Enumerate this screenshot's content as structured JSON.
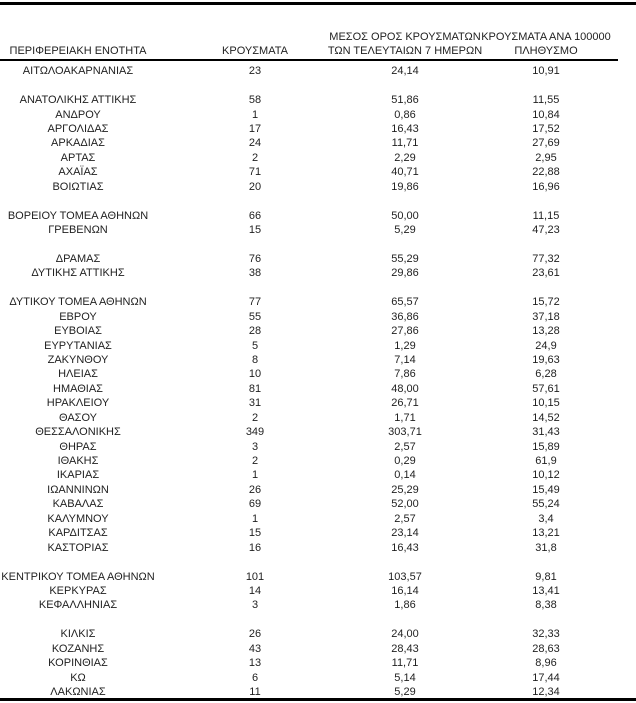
{
  "table": {
    "columns": [
      {
        "id": "region",
        "lines": [
          "ΠΕΡΙΦΕΡΕΙΑΚΗ ΕΝΟΤΗΤΑ"
        ]
      },
      {
        "id": "cases",
        "lines": [
          "ΚΡΟΥΣΜΑΤΑ"
        ]
      },
      {
        "id": "avg7",
        "lines": [
          "ΜΕΣΟΣ ΟΡΟΣ ΚΡΟΥΣΜΑΤΩΝ",
          "ΤΩΝ ΤΕΛΕΥΤΑΙΩΝ 7 ΗΜΕΡΩΝ"
        ]
      },
      {
        "id": "per100k",
        "lines": [
          "ΚΡΟΥΣΜΑΤΑ ΑΝΑ 100000",
          "ΠΛΗΘΥΣΜΟ"
        ]
      }
    ],
    "groups": [
      {
        "rows": [
          {
            "region": "ΑΙΤΩΛΟΑΚΑΡΝΑΝΙΑΣ",
            "cases": "23",
            "avg7": "24,14",
            "per100k": "10,91"
          }
        ]
      },
      {
        "rows": [
          {
            "region": "ΑΝΑΤΟΛΙΚΗΣ ΑΤΤΙΚΗΣ",
            "cases": "58",
            "avg7": "51,86",
            "per100k": "11,55"
          },
          {
            "region": "ΑΝΔΡΟΥ",
            "cases": "1",
            "avg7": "0,86",
            "per100k": "10,84"
          },
          {
            "region": "ΑΡΓΟΛΙΔΑΣ",
            "cases": "17",
            "avg7": "16,43",
            "per100k": "17,52"
          },
          {
            "region": "ΑΡΚΑΔΙΑΣ",
            "cases": "24",
            "avg7": "11,71",
            "per100k": "27,69"
          },
          {
            "region": "ΑΡΤΑΣ",
            "cases": "2",
            "avg7": "2,29",
            "per100k": "2,95"
          },
          {
            "region": "ΑΧΑΪΑΣ",
            "cases": "71",
            "avg7": "40,71",
            "per100k": "22,88"
          },
          {
            "region": "ΒΟΙΩΤΙΑΣ",
            "cases": "20",
            "avg7": "19,86",
            "per100k": "16,96"
          }
        ]
      },
      {
        "rows": [
          {
            "region": "ΒΟΡΕΙΟΥ ΤΟΜΕΑ ΑΘΗΝΩΝ",
            "cases": "66",
            "avg7": "50,00",
            "per100k": "11,15"
          },
          {
            "region": "ΓΡΕΒΕΝΩΝ",
            "cases": "15",
            "avg7": "5,29",
            "per100k": "47,23"
          }
        ]
      },
      {
        "rows": [
          {
            "region": "ΔΡΑΜΑΣ",
            "cases": "76",
            "avg7": "55,29",
            "per100k": "77,32"
          },
          {
            "region": "ΔΥΤΙΚΗΣ ΑΤΤΙΚΗΣ",
            "cases": "38",
            "avg7": "29,86",
            "per100k": "23,61"
          }
        ]
      },
      {
        "rows": [
          {
            "region": "ΔΥΤΙΚΟΥ ΤΟΜΕΑ ΑΘΗΝΩΝ",
            "cases": "77",
            "avg7": "65,57",
            "per100k": "15,72"
          },
          {
            "region": "ΕΒΡΟΥ",
            "cases": "55",
            "avg7": "36,86",
            "per100k": "37,18"
          },
          {
            "region": "ΕΥΒΟΙΑΣ",
            "cases": "28",
            "avg7": "27,86",
            "per100k": "13,28"
          },
          {
            "region": "ΕΥΡΥΤΑΝΙΑΣ",
            "cases": "5",
            "avg7": "1,29",
            "per100k": "24,9"
          },
          {
            "region": "ΖΑΚΥΝΘΟΥ",
            "cases": "8",
            "avg7": "7,14",
            "per100k": "19,63"
          },
          {
            "region": "ΗΛΕΙΑΣ",
            "cases": "10",
            "avg7": "7,86",
            "per100k": "6,28"
          },
          {
            "region": "ΗΜΑΘΙΑΣ",
            "cases": "81",
            "avg7": "48,00",
            "per100k": "57,61"
          },
          {
            "region": "ΗΡΑΚΛΕΙΟΥ",
            "cases": "31",
            "avg7": "26,71",
            "per100k": "10,15"
          },
          {
            "region": "ΘΑΣΟΥ",
            "cases": "2",
            "avg7": "1,71",
            "per100k": "14,52"
          },
          {
            "region": "ΘΕΣΣΑΛΟΝΙΚΗΣ",
            "cases": "349",
            "avg7": "303,71",
            "per100k": "31,43"
          },
          {
            "region": "ΘΗΡΑΣ",
            "cases": "3",
            "avg7": "2,57",
            "per100k": "15,89"
          },
          {
            "region": "ΙΘΑΚΗΣ",
            "cases": "2",
            "avg7": "0,29",
            "per100k": "61,9"
          },
          {
            "region": "ΙΚΑΡΙΑΣ",
            "cases": "1",
            "avg7": "0,14",
            "per100k": "10,12"
          },
          {
            "region": "ΙΩΑΝΝΙΝΩΝ",
            "cases": "26",
            "avg7": "25,29",
            "per100k": "15,49"
          },
          {
            "region": "ΚΑΒΑΛΑΣ",
            "cases": "69",
            "avg7": "52,00",
            "per100k": "55,24"
          },
          {
            "region": "ΚΑΛΥΜΝΟΥ",
            "cases": "1",
            "avg7": "2,57",
            "per100k": "3,4"
          },
          {
            "region": "ΚΑΡΔΙΤΣΑΣ",
            "cases": "15",
            "avg7": "23,14",
            "per100k": "13,21"
          },
          {
            "region": "ΚΑΣΤΟΡΙΑΣ",
            "cases": "16",
            "avg7": "16,43",
            "per100k": "31,8"
          }
        ]
      },
      {
        "rows": [
          {
            "region": "ΚΕΝΤΡΙΚΟΥ ΤΟΜΕΑ ΑΘΗΝΩΝ",
            "cases": "101",
            "avg7": "103,57",
            "per100k": "9,81"
          },
          {
            "region": "ΚΕΡΚΥΡΑΣ",
            "cases": "14",
            "avg7": "16,14",
            "per100k": "13,41"
          },
          {
            "region": "ΚΕΦΑΛΛΗΝΙΑΣ",
            "cases": "3",
            "avg7": "1,86",
            "per100k": "8,38"
          }
        ]
      },
      {
        "rows": [
          {
            "region": "ΚΙΛΚΙΣ",
            "cases": "26",
            "avg7": "24,00",
            "per100k": "32,33"
          },
          {
            "region": "ΚΟΖΑΝΗΣ",
            "cases": "43",
            "avg7": "28,43",
            "per100k": "28,63"
          },
          {
            "region": "ΚΟΡΙΝΘΙΑΣ",
            "cases": "13",
            "avg7": "11,71",
            "per100k": "8,96"
          },
          {
            "region": "ΚΩ",
            "cases": "6",
            "avg7": "5,14",
            "per100k": "17,44"
          },
          {
            "region": "ΛΑΚΩΝΙΑΣ",
            "cases": "11",
            "avg7": "5,29",
            "per100k": "12,34"
          }
        ]
      }
    ]
  },
  "colors": {
    "text": "#1f1f1f",
    "rule": "#000000",
    "background": "#ffffff"
  }
}
